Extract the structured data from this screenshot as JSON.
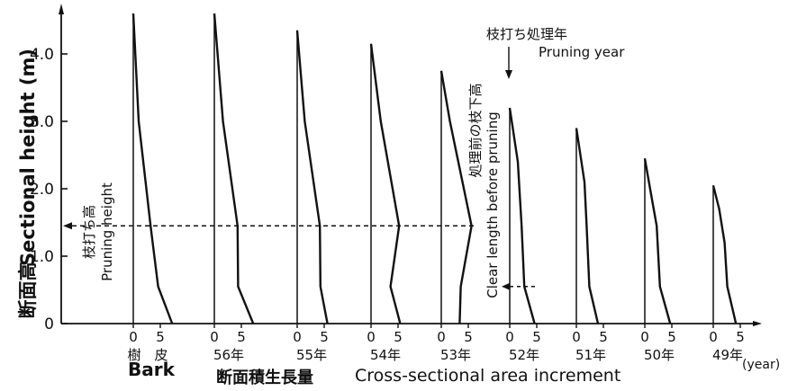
{
  "chart_data": {
    "type": "line",
    "ylabel_ja": "断面高",
    "ylabel_en": "Sectional height (m)",
    "xlabel_ja": "断面積生長量",
    "xlabel_en": "Cross-sectional area increment",
    "year_unit": "(year)",
    "ylim": [
      0,
      4.6
    ],
    "y_ticks": [
      "0",
      "1.0",
      "2.0",
      "3.0",
      "4.0"
    ],
    "panel_ticks": [
      "0",
      "5"
    ],
    "pruning_height_m": 1.45,
    "clear_length_m": 0.55,
    "annotations": {
      "pruning_height_ja": "枝打ち高",
      "pruning_height_en": "Pruning height",
      "pruning_year_ja": "枝打ち処理年",
      "pruning_year_en": "Pruning year",
      "clear_length_ja": "処理前の枝下高",
      "clear_length_en": "Clear length before pruning"
    },
    "series": [
      {
        "label": "樹　皮",
        "label_en": "Bark",
        "points": [
          [
            0,
            4.6
          ],
          [
            1.0,
            3.0
          ],
          [
            3.2,
            1.45
          ],
          [
            4.6,
            0.55
          ],
          [
            7.2,
            0
          ]
        ]
      },
      {
        "label": "56年",
        "points": [
          [
            0,
            4.6
          ],
          [
            1.6,
            3.0
          ],
          [
            4.3,
            1.45
          ],
          [
            4.4,
            0.55
          ],
          [
            7.2,
            0
          ]
        ]
      },
      {
        "label": "55年",
        "points": [
          [
            0,
            4.35
          ],
          [
            1.4,
            3.0
          ],
          [
            4.2,
            1.45
          ],
          [
            4.3,
            0.55
          ],
          [
            5.6,
            0
          ]
        ]
      },
      {
        "label": "54年",
        "points": [
          [
            0,
            4.15
          ],
          [
            1.8,
            3.0
          ],
          [
            5.2,
            1.45
          ],
          [
            3.6,
            0.55
          ],
          [
            5.4,
            0
          ]
        ]
      },
      {
        "label": "53年",
        "points": [
          [
            0,
            3.75
          ],
          [
            1.6,
            3.0
          ],
          [
            5.6,
            1.45
          ],
          [
            3.6,
            0.55
          ],
          [
            3.4,
            0
          ]
        ]
      },
      {
        "label": "52年",
        "points": [
          [
            0,
            3.2
          ],
          [
            1.5,
            2.4
          ],
          [
            2.2,
            1.45
          ],
          [
            2.7,
            0.55
          ],
          [
            4.6,
            0
          ]
        ]
      },
      {
        "label": "51年",
        "points": [
          [
            0,
            2.9
          ],
          [
            1.5,
            2.1
          ],
          [
            1.9,
            1.45
          ],
          [
            2.4,
            0.55
          ],
          [
            4.0,
            0
          ]
        ]
      },
      {
        "label": "50年",
        "points": [
          [
            0,
            2.45
          ],
          [
            1.2,
            1.9
          ],
          [
            2.2,
            1.45
          ],
          [
            2.8,
            0.55
          ],
          [
            4.7,
            0
          ]
        ]
      },
      {
        "label": "49年",
        "points": [
          [
            0,
            2.05
          ],
          [
            1.1,
            1.7
          ],
          [
            2.1,
            1.2
          ],
          [
            2.6,
            0.55
          ],
          [
            4.2,
            0
          ]
        ]
      }
    ]
  }
}
